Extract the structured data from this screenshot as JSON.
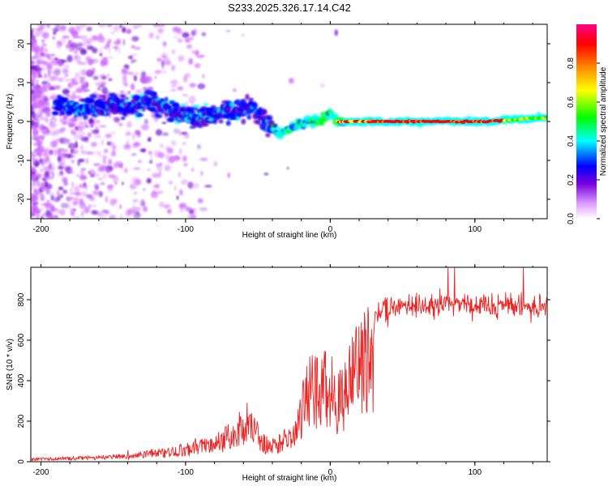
{
  "title": "S233.2025.326.17.14.C42",
  "chart_data": [
    {
      "type": "heatmap",
      "name": "spectrogram",
      "xlabel": "Height of straight line (km)",
      "ylabel": "Frequency (Hz)",
      "xlim": [
        -207,
        150
      ],
      "ylim": [
        -25,
        25
      ],
      "x_ticks": [
        -200,
        -100,
        0,
        100
      ],
      "x_tick_labels": [
        "-200",
        "-100",
        "0",
        "100"
      ],
      "y_ticks": [
        20,
        10,
        0,
        -10,
        -20
      ],
      "y_tick_labels": [
        "20",
        "10",
        "0",
        "-10",
        "-20"
      ],
      "colorbar": {
        "label": "Normalized spectral amplitude",
        "range": [
          0,
          1
        ],
        "ticks": [
          0,
          0.2,
          0.4,
          0.6,
          0.8
        ],
        "tick_labels": [
          "0.0",
          "0.2",
          "0.4",
          "0.6",
          "0.8"
        ],
        "colors": [
          "#ffffff",
          "#cc66ff",
          "#6600cc",
          "#0000ff",
          "#00ffff",
          "#00ff00",
          "#ffff00",
          "#ff8800",
          "#ff0000",
          "#ff00aa"
        ]
      },
      "ridge": [
        [
          -185,
          4
        ],
        [
          -165,
          3.5
        ],
        [
          -140,
          4
        ],
        [
          -125,
          5
        ],
        [
          -110,
          3
        ],
        [
          -95,
          1
        ],
        [
          -80,
          2
        ],
        [
          -65,
          2.5
        ],
        [
          -55,
          4
        ],
        [
          -45,
          0
        ],
        [
          -35,
          -3.5
        ],
        [
          -25,
          -1
        ],
        [
          -15,
          0
        ],
        [
          -5,
          0.5
        ],
        [
          0,
          2.5
        ],
        [
          5,
          0
        ],
        [
          15,
          0
        ],
        [
          40,
          0
        ],
        [
          80,
          0
        ],
        [
          110,
          0
        ],
        [
          130,
          0.5
        ],
        [
          150,
          1
        ]
      ]
    },
    {
      "type": "line",
      "name": "snr",
      "xlabel": "Height of straight line (km)",
      "ylabel": "SNR (10 * v/v)",
      "xlim": [
        -207,
        150
      ],
      "ylim": [
        0,
        960
      ],
      "x_ticks": [
        -200,
        -100,
        0,
        100
      ],
      "x_tick_labels": [
        "-200",
        "-100",
        "0",
        "100"
      ],
      "y_ticks": [
        0,
        200,
        400,
        600,
        800
      ],
      "y_tick_labels": [
        "0",
        "200",
        "400",
        "600",
        "800"
      ],
      "color": "#ee2222",
      "envelope": [
        [
          -207,
          15
        ],
        [
          -180,
          20
        ],
        [
          -150,
          28
        ],
        [
          -130,
          40
        ],
        [
          -110,
          60
        ],
        [
          -100,
          75
        ],
        [
          -90,
          90
        ],
        [
          -75,
          130
        ],
        [
          -65,
          180
        ],
        [
          -58,
          240
        ],
        [
          -52,
          190
        ],
        [
          -45,
          110
        ],
        [
          -38,
          90
        ],
        [
          -30,
          130
        ],
        [
          -22,
          250
        ],
        [
          -15,
          420
        ],
        [
          -8,
          430
        ],
        [
          -2,
          450
        ],
        [
          5,
          380
        ],
        [
          10,
          400
        ],
        [
          15,
          520
        ],
        [
          20,
          580
        ],
        [
          25,
          620
        ],
        [
          30,
          700
        ],
        [
          35,
          740
        ],
        [
          45,
          760
        ],
        [
          60,
          770
        ],
        [
          80,
          780
        ],
        [
          100,
          775
        ],
        [
          120,
          770
        ],
        [
          140,
          765
        ],
        [
          150,
          765
        ]
      ]
    }
  ]
}
